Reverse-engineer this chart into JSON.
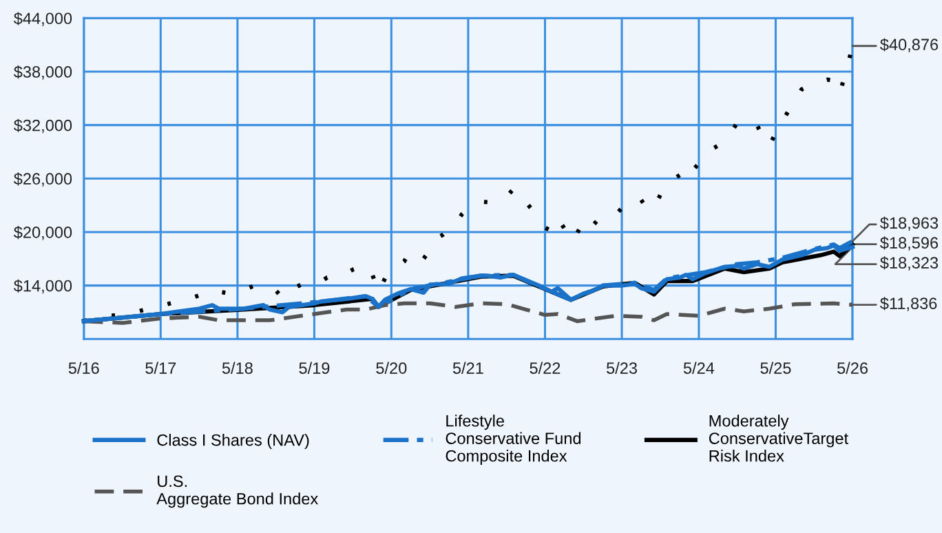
{
  "chart_data": {
    "type": "line",
    "xlim": [
      "2016-05",
      "2026-05"
    ],
    "xticks": [
      {
        "value": "2016-05",
        "label": "5/16"
      },
      {
        "value": "2017-05",
        "label": "5/17"
      },
      {
        "value": "2018-05",
        "label": "5/18"
      },
      {
        "value": "2019-05",
        "label": "5/19"
      },
      {
        "value": "2020-05",
        "label": "5/20"
      },
      {
        "value": "2021-05",
        "label": "5/21"
      },
      {
        "value": "2022-05",
        "label": "5/22"
      },
      {
        "value": "2023-05",
        "label": "5/23"
      },
      {
        "value": "2024-05",
        "label": "5/24"
      },
      {
        "value": "2025-05",
        "label": "5/25"
      },
      {
        "value": "2026-05",
        "label": "5/26"
      }
    ],
    "ylim": [
      8000,
      44000
    ],
    "yticks": [
      {
        "value": 14000,
        "label": "$14,000"
      },
      {
        "value": 20000,
        "label": "$20,000"
      },
      {
        "value": 26000,
        "label": "$26,000"
      },
      {
        "value": 32000,
        "label": "$32,000"
      },
      {
        "value": 38000,
        "label": "$38,000"
      },
      {
        "value": 44000,
        "label": "$44,000"
      }
    ],
    "grid": true,
    "legend": "bottom",
    "series": [
      {
        "name": "Class I Shares (NAV)",
        "color": "#1a73c9",
        "line_style": "solid",
        "x": [
          "2016-05",
          "2016-11",
          "2017-05",
          "2017-11",
          "2018-01",
          "2018-02",
          "2018-06",
          "2018-09",
          "2018-10",
          "2018-12",
          "2019-01",
          "2019-05",
          "2019-06",
          "2019-10",
          "2020-01",
          "2020-02",
          "2020-03",
          "2020-04",
          "2020-06",
          "2020-08",
          "2020-10",
          "2020-11",
          "2021-02",
          "2021-04",
          "2021-07",
          "2021-08",
          "2021-10",
          "2021-12",
          "2022-01",
          "2022-04",
          "2022-06",
          "2022-07",
          "2022-09",
          "2022-11",
          "2022-12",
          "2023-01",
          "2023-02",
          "2023-05",
          "2023-07",
          "2023-08",
          "2023-10",
          "2023-12",
          "2024-02",
          "2024-03",
          "2024-04",
          "2024-06",
          "2024-09",
          "2024-11",
          "2024-12",
          "2025-02",
          "2025-04",
          "2025-06",
          "2025-09",
          "2025-11",
          "2026-01",
          "2026-02",
          "2026-03",
          "2026-05"
        ],
        "values": [
          10000,
          10400,
          10800,
          11400,
          11800,
          11400,
          11400,
          11800,
          11300,
          11000,
          11600,
          12000,
          12200,
          12500,
          12800,
          12500,
          11600,
          12400,
          13100,
          13600,
          13200,
          14100,
          14200,
          14800,
          15100,
          15100,
          14900,
          15200,
          14900,
          14000,
          13300,
          13700,
          12400,
          13100,
          13300,
          13600,
          14000,
          14000,
          14200,
          13700,
          13300,
          14700,
          14900,
          15200,
          14700,
          15400,
          16100,
          16200,
          15900,
          16400,
          16100,
          16900,
          17400,
          18000,
          18200,
          18500,
          17900,
          18323
        ]
      },
      {
        "color": "#000000",
        "line_style": "dotted",
        "x": [
          "2016-05",
          "2016-07",
          "2016-09",
          "2016-11",
          "2017-01",
          "2017-03",
          "2017-05",
          "2017-07",
          "2017-09",
          "2017-11",
          "2017-12",
          "2018-02",
          "2018-04",
          "2018-06",
          "2018-08",
          "2018-09",
          "2018-11",
          "2018-12",
          "2019-01",
          "2019-03",
          "2019-04",
          "2019-06",
          "2019-07",
          "2019-09",
          "2019-11",
          "2020-01",
          "2020-02",
          "2020-03",
          "2020-04",
          "2020-05",
          "2020-07",
          "2020-08",
          "2020-10",
          "2020-11",
          "2020-12",
          "2021-01",
          "2021-03",
          "2021-04",
          "2021-05",
          "2021-07",
          "2021-09",
          "2021-10",
          "2021-11",
          "2021-12",
          "2022-01",
          "2022-02",
          "2022-03",
          "2022-04",
          "2022-05",
          "2022-06",
          "2022-07",
          "2022-08",
          "2022-09",
          "2022-10",
          "2022-11",
          "2022-12",
          "2023-01",
          "2023-02",
          "2023-04",
          "2023-05",
          "2023-07",
          "2023-08",
          "2023-09",
          "2023-10",
          "2023-11",
          "2023-12",
          "2024-02",
          "2024-03",
          "2024-04",
          "2024-05",
          "2024-06",
          "2024-08",
          "2024-09",
          "2024-10",
          "2024-11",
          "2024-12",
          "2025-02",
          "2025-03",
          "2025-04",
          "2025-05",
          "2025-06",
          "2025-07",
          "2025-08",
          "2025-09",
          "2025-11",
          "2026-01",
          "2026-02",
          "2026-03",
          "2026-04",
          "2026-05"
        ],
        "values": [
          10000,
          10500,
          10600,
          10700,
          11000,
          11400,
          11700,
          12100,
          12400,
          12900,
          13400,
          13300,
          13100,
          13500,
          14100,
          13800,
          13400,
          12600,
          13500,
          14100,
          14400,
          14400,
          14900,
          15000,
          15800,
          16300,
          15200,
          13300,
          14800,
          15600,
          16700,
          17900,
          17000,
          18000,
          19300,
          19700,
          20800,
          22000,
          22700,
          23400,
          23300,
          23700,
          24000,
          24800,
          23500,
          23300,
          22500,
          21400,
          20500,
          20100,
          21500,
          20400,
          19000,
          19900,
          21200,
          20400,
          21200,
          21200,
          21900,
          22700,
          23900,
          23600,
          22500,
          22800,
          24200,
          25400,
          26400,
          27600,
          26900,
          27700,
          28900,
          29700,
          30600,
          31200,
          32300,
          31800,
          32000,
          30700,
          29700,
          31100,
          32400,
          33600,
          34700,
          36000,
          36700,
          37100,
          37000,
          35600,
          38000,
          40876
        ]
      },
      {
        "name": "U.S.\nAggregate Bond Index",
        "color": "#555555",
        "line_style": "dashed",
        "x": [
          "2016-05",
          "2016-11",
          "2017-05",
          "2017-11",
          "2018-02",
          "2018-10",
          "2019-05",
          "2019-10",
          "2020-01",
          "2020-04",
          "2020-07",
          "2020-11",
          "2021-03",
          "2021-07",
          "2021-11",
          "2022-05",
          "2022-07",
          "2022-10",
          "2023-04",
          "2023-08",
          "2023-10",
          "2023-12",
          "2024-05",
          "2024-09",
          "2024-12",
          "2025-04",
          "2025-08",
          "2026-02",
          "2026-05"
        ],
        "values": [
          10000,
          9800,
          10300,
          10500,
          10100,
          10100,
          10800,
          11300,
          11300,
          11800,
          12000,
          12000,
          11600,
          12000,
          11900,
          10700,
          10800,
          10000,
          10600,
          10500,
          10100,
          10800,
          10600,
          11400,
          11100,
          11400,
          11900,
          12000,
          11836
        ]
      },
      {
        "name": "Lifestyle\nConservative Fund\nComposite Index",
        "color": "#1a73c9",
        "line_style": "dashdot",
        "x": [
          "2016-05",
          "2017-05",
          "2018-06",
          "2019-06",
          "2020-01",
          "2020-03",
          "2020-08",
          "2021-07",
          "2021-12",
          "2022-06",
          "2022-09",
          "2023-02",
          "2023-07",
          "2023-10",
          "2023-12",
          "2024-06",
          "2024-11",
          "2025-02",
          "2025-06",
          "2025-11",
          "2026-02",
          "2026-03",
          "2026-05"
        ],
        "values": [
          10000,
          10800,
          11400,
          12200,
          12800,
          11600,
          13600,
          15100,
          15200,
          13300,
          12400,
          14000,
          14300,
          13500,
          14800,
          15500,
          16400,
          16600,
          17100,
          18100,
          18600,
          18200,
          18963
        ]
      },
      {
        "name": "Moderately\nConservativeTarget\nRisk Index",
        "color": "#000000",
        "line_style": "solid",
        "x": [
          "2016-05",
          "2017-05",
          "2018-06",
          "2019-05",
          "2020-02",
          "2020-03",
          "2020-08",
          "2021-07",
          "2021-12",
          "2022-06",
          "2022-09",
          "2023-02",
          "2023-07",
          "2023-10",
          "2023-12",
          "2024-04",
          "2024-09",
          "2024-12",
          "2025-04",
          "2025-06",
          "2025-12",
          "2026-02",
          "2026-03",
          "2026-05"
        ],
        "values": [
          10000,
          10800,
          11300,
          11800,
          12500,
          11600,
          13500,
          15000,
          15100,
          13300,
          12400,
          13900,
          14300,
          13000,
          14500,
          14500,
          15900,
          15500,
          15900,
          16600,
          17400,
          17800,
          17300,
          18596
        ]
      }
    ],
    "annotations": [
      {
        "text": "$40,876",
        "x": "2026-05",
        "y": 40876
      },
      {
        "text": "$18,963",
        "x": "2026-05",
        "y": 18963
      },
      {
        "text": "$18,596",
        "x": "2026-05",
        "y": 18596
      },
      {
        "text": "$18,323",
        "x": "2026-05",
        "y": 18323
      },
      {
        "text": "$11,836",
        "x": "2026-05",
        "y": 11836
      }
    ]
  }
}
